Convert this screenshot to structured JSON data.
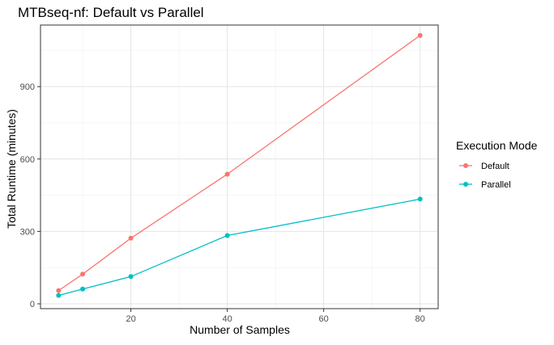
{
  "chart_data": {
    "type": "line",
    "title": "MTBseq-nf: Default vs Parallel",
    "xlabel": "Number of Samples",
    "ylabel": "Total Runtime (minutes)",
    "xlim": [
      1.25,
      83.75
    ],
    "ylim": [
      -20,
      1155
    ],
    "x_ticks": [
      20,
      40,
      60,
      80
    ],
    "y_ticks": [
      0,
      300,
      600,
      900
    ],
    "grid": true,
    "legend_title": "Execution Mode",
    "legend_position": "right",
    "series": [
      {
        "name": "Default",
        "color": "#F8766D",
        "x": [
          5,
          10,
          20,
          40,
          80
        ],
        "y": [
          55,
          123,
          272,
          537,
          1112
        ]
      },
      {
        "name": "Parallel",
        "color": "#00BFC4",
        "x": [
          5,
          10,
          20,
          40,
          80
        ],
        "y": [
          35,
          61,
          113,
          283,
          434
        ]
      }
    ]
  }
}
